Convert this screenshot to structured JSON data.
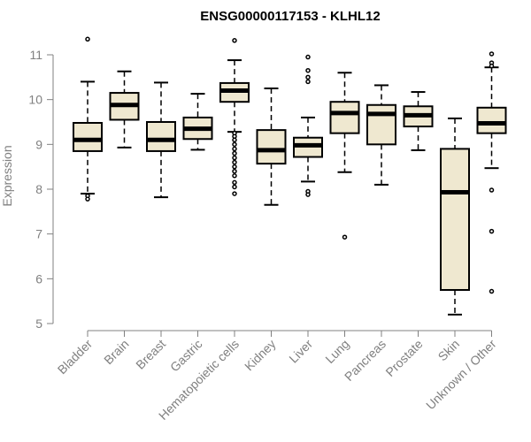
{
  "chart_data": {
    "type": "boxplot",
    "title": "ENSG00000117153 - KLHL12",
    "xlabel": "",
    "ylabel": "Expression",
    "ylim": [
      5,
      11
    ],
    "yticks": [
      5,
      6,
      7,
      8,
      9,
      10,
      11
    ],
    "box_fill": "#efe8d0",
    "box_stroke": "#000000",
    "axis_color": "#808080",
    "categories": [
      "Bladder",
      "Brain",
      "Breast",
      "Gastric",
      "Hematopoietic cells",
      "Kidney",
      "Liver",
      "Lung",
      "Pancreas",
      "Prostate",
      "Skin",
      "Unknown / Other"
    ],
    "boxes": [
      {
        "name": "Bladder",
        "whisker_low": 7.9,
        "q1": 8.85,
        "median": 9.1,
        "q3": 9.48,
        "whisker_high": 10.4,
        "outliers": [
          11.35,
          7.85,
          7.78
        ]
      },
      {
        "name": "Brain",
        "whisker_low": 8.93,
        "q1": 9.55,
        "median": 9.88,
        "q3": 10.15,
        "whisker_high": 10.63,
        "outliers": []
      },
      {
        "name": "Breast",
        "whisker_low": 7.82,
        "q1": 8.85,
        "median": 9.1,
        "q3": 9.5,
        "whisker_high": 10.38,
        "outliers": []
      },
      {
        "name": "Gastric",
        "whisker_low": 8.88,
        "q1": 9.12,
        "median": 9.35,
        "q3": 9.6,
        "whisker_high": 10.13,
        "outliers": []
      },
      {
        "name": "Hematopoietic cells",
        "whisker_low": 9.28,
        "q1": 9.95,
        "median": 10.2,
        "q3": 10.37,
        "whisker_high": 10.88,
        "outliers": [
          11.32,
          9.25,
          9.18,
          9.1,
          9.0,
          8.9,
          8.8,
          8.7,
          8.6,
          8.5,
          8.4,
          8.3,
          8.15,
          8.05,
          7.9
        ]
      },
      {
        "name": "Kidney",
        "whisker_low": 7.65,
        "q1": 8.57,
        "median": 8.87,
        "q3": 9.32,
        "whisker_high": 10.25,
        "outliers": []
      },
      {
        "name": "Liver",
        "whisker_low": 8.17,
        "q1": 8.72,
        "median": 8.98,
        "q3": 9.15,
        "whisker_high": 9.6,
        "outliers": [
          10.95,
          10.65,
          10.5,
          10.4,
          7.95,
          7.88
        ]
      },
      {
        "name": "Lung",
        "whisker_low": 8.38,
        "q1": 9.25,
        "median": 9.7,
        "q3": 9.95,
        "whisker_high": 10.6,
        "outliers": [
          6.93
        ]
      },
      {
        "name": "Pancreas",
        "whisker_low": 8.1,
        "q1": 9.0,
        "median": 9.68,
        "q3": 9.88,
        "whisker_high": 10.32,
        "outliers": []
      },
      {
        "name": "Prostate",
        "whisker_low": 8.87,
        "q1": 9.4,
        "median": 9.65,
        "q3": 9.85,
        "whisker_high": 10.17,
        "outliers": []
      },
      {
        "name": "Skin",
        "whisker_low": 5.2,
        "q1": 5.75,
        "median": 7.93,
        "q3": 8.9,
        "whisker_high": 9.58,
        "outliers": []
      },
      {
        "name": "Unknown / Other",
        "whisker_low": 8.47,
        "q1": 9.25,
        "median": 9.47,
        "q3": 9.82,
        "whisker_high": 10.72,
        "outliers": [
          11.02,
          10.82,
          10.75,
          7.98,
          7.06,
          5.72
        ]
      }
    ]
  }
}
